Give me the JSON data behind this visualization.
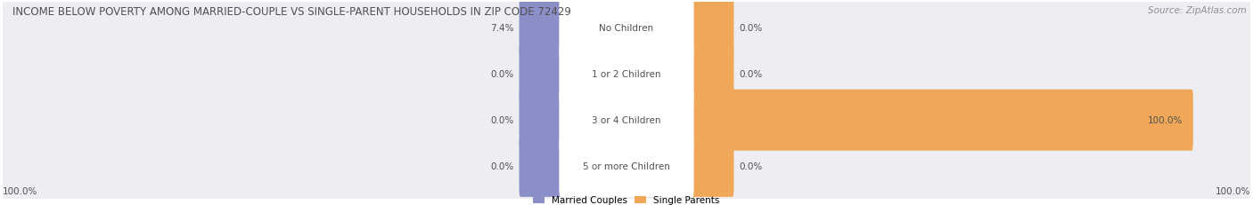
{
  "title": "INCOME BELOW POVERTY AMONG MARRIED-COUPLE VS SINGLE-PARENT HOUSEHOLDS IN ZIP CODE 72429",
  "source": "Source: ZipAtlas.com",
  "categories": [
    "No Children",
    "1 or 2 Children",
    "3 or 4 Children",
    "5 or more Children"
  ],
  "married_values": [
    7.4,
    0.0,
    0.0,
    0.0
  ],
  "single_values": [
    0.0,
    0.0,
    100.0,
    0.0
  ],
  "married_color": "#8b8fc8",
  "single_color": "#f0a858",
  "married_label": "Married Couples",
  "single_label": "Single Parents",
  "row_bg_color": "#ededf2",
  "title_color": "#505050",
  "source_color": "#909090",
  "label_color": "#505050",
  "max_value": 100.0,
  "left_axis_label": "100.0%",
  "right_axis_label": "100.0%",
  "min_bar_width": 8.0
}
